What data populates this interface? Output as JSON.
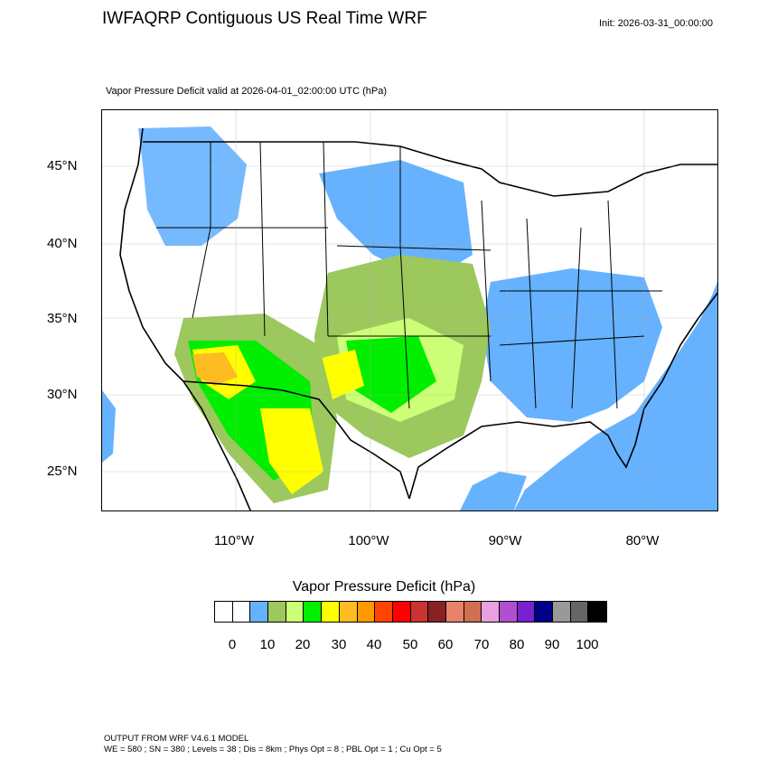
{
  "header": {
    "title": "IWFAQRP Contiguous US Real Time WRF",
    "init": "Init: 2026-03-31_00:00:00"
  },
  "plot": {
    "subtitle": "Vapor Pressure Deficit valid at 2026-04-01_02:00:00 UTC   (hPa)",
    "lat_labels": [
      "45°N",
      "40°N",
      "35°N",
      "30°N",
      "25°N"
    ],
    "lon_labels": [
      "110°W",
      "100°W",
      "90°W",
      "80°W"
    ]
  },
  "colorbar": {
    "title": "Vapor Pressure Deficit  (hPa)",
    "colors": [
      "#ffffff",
      "#ffffff",
      "#66b2ff",
      "#9cc85e",
      "#ccff77",
      "#00ee00",
      "#ffff00",
      "#ffbb22",
      "#ff9900",
      "#ff4400",
      "#ff0000",
      "#cc3333",
      "#882222",
      "#e8836a",
      "#d07050",
      "#e8a0e0",
      "#b050d0",
      "#7722cc",
      "#000088",
      "#999999",
      "#666666",
      "#000000"
    ],
    "ticks": [
      "0",
      "10",
      "20",
      "30",
      "40",
      "50",
      "60",
      "70",
      "80",
      "90",
      "100"
    ]
  },
  "footer": {
    "line1": "OUTPUT FROM WRF V4.6.1 MODEL",
    "line2": "WE = 580 ; SN = 380 ; Levels = 38 ; Dis = 8km ; Phys Opt = 8 ; PBL Opt = 1 ; Cu Opt = 5"
  }
}
